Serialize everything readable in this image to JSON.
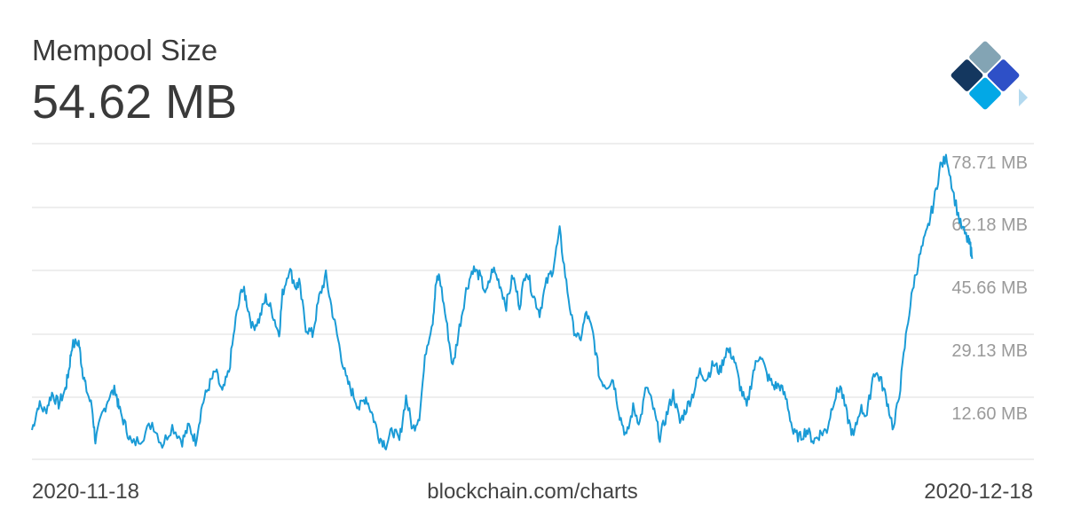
{
  "header": {
    "title": "Mempool Size",
    "current_value": "54.62 MB"
  },
  "footer": {
    "start_date": "2020-11-18",
    "source": "blockchain.com/charts",
    "end_date": "2020-12-18"
  },
  "logo": {
    "icon": "blockchain-diamond-logo-icon",
    "colors": [
      "#83a4b4",
      "#14375f",
      "#2e50c7",
      "#02a8e6",
      "#b3d9ef"
    ]
  },
  "chart_data": {
    "type": "line",
    "title": "Mempool Size",
    "xlabel": "",
    "ylabel": "",
    "x_start": "2020-11-18",
    "x_end": "2020-12-18",
    "ylim": [
      0,
      86
    ],
    "yticks": [
      {
        "value": 12.6,
        "label": "12.60 MB"
      },
      {
        "value": 29.13,
        "label": "29.13 MB"
      },
      {
        "value": 45.66,
        "label": "45.66 MB"
      },
      {
        "value": 62.18,
        "label": "62.18 MB"
      },
      {
        "value": 78.71,
        "label": "78.71 MB"
      }
    ],
    "grid": true,
    "series": [
      {
        "color": "#1a9bd6",
        "points": [
          [
            0.0,
            8
          ],
          [
            0.2,
            15
          ],
          [
            0.4,
            13
          ],
          [
            0.6,
            18
          ],
          [
            0.8,
            15
          ],
          [
            1.0,
            19
          ],
          [
            1.1,
            24
          ],
          [
            1.2,
            31
          ],
          [
            1.4,
            32
          ],
          [
            1.5,
            25
          ],
          [
            1.6,
            20
          ],
          [
            1.8,
            14
          ],
          [
            1.9,
            5
          ],
          [
            2.1,
            12
          ],
          [
            2.3,
            17
          ],
          [
            2.5,
            19
          ],
          [
            2.6,
            14
          ],
          [
            2.8,
            9
          ],
          [
            3.0,
            4
          ],
          [
            3.3,
            6
          ],
          [
            3.6,
            10
          ],
          [
            3.9,
            4
          ],
          [
            4.2,
            9
          ],
          [
            4.5,
            5
          ],
          [
            4.7,
            9
          ],
          [
            4.9,
            5
          ],
          [
            5.1,
            15
          ],
          [
            5.3,
            20
          ],
          [
            5.5,
            24
          ],
          [
            5.7,
            18
          ],
          [
            5.9,
            24
          ],
          [
            6.1,
            38
          ],
          [
            6.3,
            47
          ],
          [
            6.4,
            44
          ],
          [
            6.6,
            36
          ],
          [
            6.8,
            38
          ],
          [
            7.0,
            44
          ],
          [
            7.2,
            40
          ],
          [
            7.4,
            34
          ],
          [
            7.5,
            45
          ],
          [
            7.7,
            52
          ],
          [
            7.9,
            47
          ],
          [
            8.0,
            48
          ],
          [
            8.2,
            36
          ],
          [
            8.4,
            34
          ],
          [
            8.6,
            44
          ],
          [
            8.8,
            50
          ],
          [
            9.0,
            40
          ],
          [
            9.2,
            31
          ],
          [
            9.4,
            22
          ],
          [
            9.6,
            18
          ],
          [
            9.8,
            14
          ],
          [
            10.0,
            17
          ],
          [
            10.2,
            12
          ],
          [
            10.4,
            6
          ],
          [
            10.6,
            4
          ],
          [
            10.8,
            8
          ],
          [
            11.0,
            5
          ],
          [
            11.2,
            17
          ],
          [
            11.4,
            8
          ],
          [
            11.6,
            12
          ],
          [
            11.8,
            30
          ],
          [
            12.0,
            38
          ],
          [
            12.1,
            48
          ],
          [
            12.2,
            50
          ],
          [
            12.4,
            38
          ],
          [
            12.6,
            25
          ],
          [
            12.8,
            36
          ],
          [
            13.0,
            46
          ],
          [
            13.2,
            52
          ],
          [
            13.4,
            50
          ],
          [
            13.6,
            45
          ],
          [
            13.8,
            52
          ],
          [
            14.0,
            48
          ],
          [
            14.2,
            42
          ],
          [
            14.4,
            50
          ],
          [
            14.6,
            42
          ],
          [
            14.8,
            52
          ],
          [
            15.0,
            45
          ],
          [
            15.2,
            40
          ],
          [
            15.4,
            48
          ],
          [
            15.6,
            52
          ],
          [
            15.8,
            62
          ],
          [
            16.0,
            48
          ],
          [
            16.2,
            36
          ],
          [
            16.4,
            32
          ],
          [
            16.6,
            40
          ],
          [
            16.8,
            34
          ],
          [
            17.0,
            22
          ],
          [
            17.2,
            20
          ],
          [
            17.4,
            22
          ],
          [
            17.6,
            12
          ],
          [
            17.8,
            6
          ],
          [
            18.0,
            14
          ],
          [
            18.2,
            10
          ],
          [
            18.4,
            20
          ],
          [
            18.6,
            14
          ],
          [
            18.8,
            6
          ],
          [
            19.0,
            12
          ],
          [
            19.2,
            18
          ],
          [
            19.4,
            10
          ],
          [
            19.6,
            14
          ],
          [
            19.8,
            18
          ],
          [
            20.0,
            24
          ],
          [
            20.2,
            22
          ],
          [
            20.4,
            26
          ],
          [
            20.6,
            24
          ],
          [
            20.8,
            30
          ],
          [
            21.0,
            28
          ],
          [
            21.2,
            20
          ],
          [
            21.4,
            14
          ],
          [
            21.6,
            24
          ],
          [
            21.8,
            29
          ],
          [
            22.0,
            23
          ],
          [
            22.2,
            20
          ],
          [
            22.4,
            20
          ],
          [
            22.6,
            16
          ],
          [
            22.8,
            7
          ],
          [
            23.0,
            6
          ],
          [
            23.2,
            8
          ],
          [
            23.4,
            5
          ],
          [
            23.6,
            7
          ],
          [
            23.8,
            8
          ],
          [
            24.0,
            16
          ],
          [
            24.2,
            20
          ],
          [
            24.4,
            12
          ],
          [
            24.6,
            6
          ],
          [
            24.8,
            14
          ],
          [
            25.0,
            12
          ],
          [
            25.2,
            24
          ],
          [
            25.4,
            22
          ],
          [
            25.6,
            16
          ],
          [
            25.8,
            8
          ],
          [
            26.0,
            20
          ],
          [
            26.2,
            36
          ],
          [
            26.4,
            48
          ],
          [
            26.6,
            56
          ],
          [
            26.8,
            62
          ],
          [
            27.0,
            70
          ],
          [
            27.2,
            80
          ],
          [
            27.4,
            82
          ],
          [
            27.6,
            72
          ],
          [
            27.8,
            64
          ],
          [
            28.0,
            60
          ],
          [
            28.1,
            58
          ],
          [
            28.15,
            54.62
          ]
        ]
      }
    ]
  }
}
